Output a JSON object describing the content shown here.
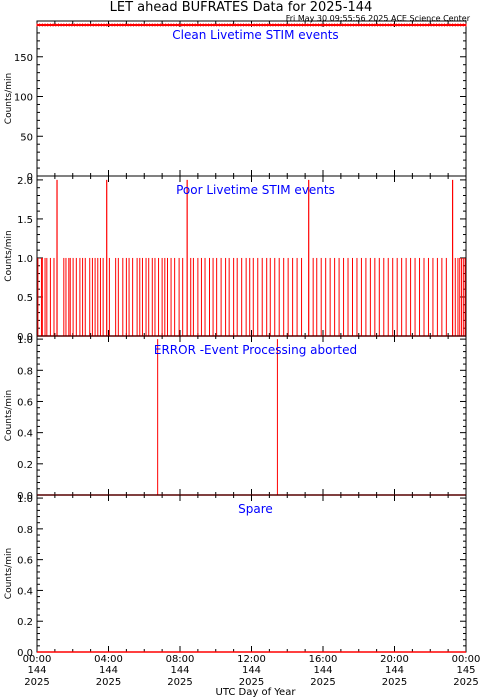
{
  "title": "LET ahead BUFRATES Data for 2025-144",
  "timestamp": "Fri May 30 09:55:56 2025 ACE Science Center",
  "xlabel": "UTC Day of Year",
  "x_ticks": [
    {
      "time": "00:00",
      "day": "144",
      "year": "2025"
    },
    {
      "time": "04:00",
      "day": "144",
      "year": "2025"
    },
    {
      "time": "08:00",
      "day": "144",
      "year": "2025"
    },
    {
      "time": "12:00",
      "day": "144",
      "year": "2025"
    },
    {
      "time": "16:00",
      "day": "144",
      "year": "2025"
    },
    {
      "time": "20:00",
      "day": "144",
      "year": "2025"
    },
    {
      "time": "00:00",
      "day": "145",
      "year": "2025"
    }
  ],
  "colors": {
    "data": "#ff0000",
    "label": "#0000ff",
    "axis": "#000000"
  },
  "chart_data": [
    {
      "type": "line",
      "label": "Clean Livetime STIM events",
      "ylabel": "Counts/min",
      "ylim": [
        0,
        195
      ],
      "yticks": [
        "0",
        "50",
        "100",
        "150"
      ],
      "yticks_values": [
        0,
        50,
        100,
        150
      ],
      "xlim_hours": [
        0,
        24
      ],
      "baseline": 190,
      "series": [
        {
          "x_hours": [
            0,
            24
          ],
          "values": [
            190,
            190
          ]
        }
      ]
    },
    {
      "type": "line",
      "label": "Poor Livetime STIM events",
      "ylabel": "Counts/min",
      "ylim": [
        0,
        2.05
      ],
      "yticks": [
        "0.0",
        "0.5",
        "1.0",
        "1.5",
        "2.0"
      ],
      "yticks_values": [
        0,
        0.5,
        1.0,
        1.5,
        2.0
      ],
      "xlim_hours": [
        0,
        24
      ],
      "spikes_value_2": [
        1.12,
        3.9,
        8.4,
        15.2,
        23.25
      ],
      "spikes_value_1": [
        0.05,
        0.25,
        0.3,
        0.45,
        0.55,
        0.75,
        0.95,
        1.5,
        1.62,
        1.78,
        1.86,
        2.02,
        2.2,
        2.4,
        2.55,
        2.7,
        2.95,
        3.1,
        3.25,
        3.4,
        3.55,
        3.7,
        4.05,
        4.4,
        4.55,
        4.8,
        5.0,
        5.15,
        5.35,
        5.6,
        5.75,
        5.9,
        6.1,
        6.25,
        6.45,
        6.6,
        6.8,
        7.0,
        7.15,
        7.3,
        7.5,
        7.7,
        7.95,
        8.15,
        8.6,
        8.75,
        9.0,
        9.2,
        9.4,
        9.65,
        9.85,
        10.05,
        10.3,
        10.55,
        10.75,
        11.0,
        11.2,
        11.45,
        11.7,
        11.9,
        12.1,
        12.35,
        12.6,
        12.85,
        13.05,
        13.3,
        13.55,
        13.8,
        14.05,
        14.3,
        14.55,
        14.8,
        15.45,
        15.65,
        15.9,
        16.15,
        16.4,
        16.65,
        16.9,
        17.15,
        17.4,
        17.65,
        17.9,
        18.15,
        18.4,
        18.65,
        18.9,
        19.15,
        19.4,
        19.65,
        19.9,
        20.15,
        20.4,
        20.65,
        20.9,
        21.15,
        21.4,
        21.65,
        21.9,
        22.15,
        22.4,
        22.65,
        22.9,
        23.4,
        23.55,
        23.65,
        23.75,
        23.85,
        23.95
      ]
    },
    {
      "type": "line",
      "label": "ERROR -Event Processing aborted",
      "ylabel": "Counts/min",
      "ylim": [
        0,
        1.02
      ],
      "yticks": [
        "0.0",
        "0.2",
        "0.4",
        "0.6",
        "0.8",
        "1.0"
      ],
      "yticks_values": [
        0,
        0.2,
        0.4,
        0.6,
        0.8,
        1.0
      ],
      "xlim_hours": [
        0,
        24
      ],
      "spikes_value_1": [
        6.75,
        13.45
      ]
    },
    {
      "type": "line",
      "label": "Spare",
      "ylabel": "Counts/min",
      "ylim": [
        0,
        1.02
      ],
      "yticks": [
        "0.0",
        "0.2",
        "0.4",
        "0.6",
        "0.8",
        "1.0"
      ],
      "yticks_values": [
        0,
        0.2,
        0.4,
        0.6,
        0.8,
        1.0
      ],
      "xlim_hours": [
        0,
        24
      ],
      "series": [
        {
          "x_hours": [
            0,
            24
          ],
          "values": [
            0,
            0
          ]
        }
      ]
    }
  ]
}
